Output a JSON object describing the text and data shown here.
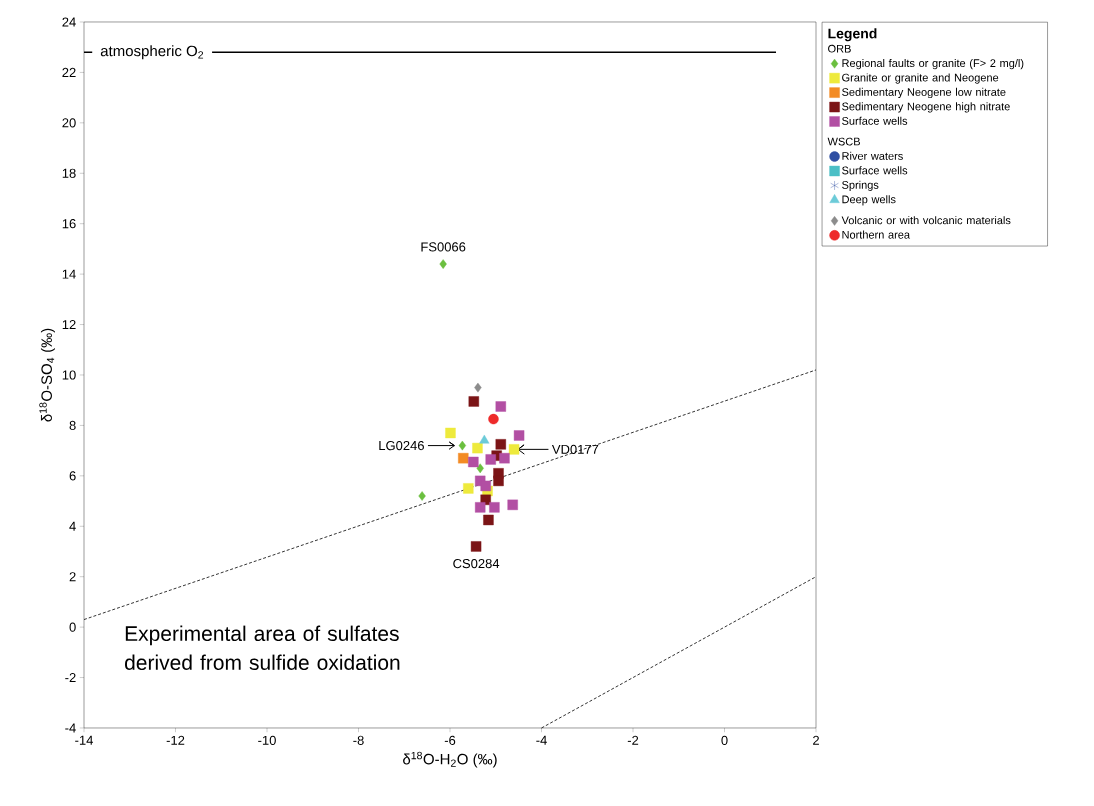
{
  "chart_data": {
    "type": "scatter",
    "xlabel": "δ$^{18}$O-H$_{2}$O (‰)",
    "ylabel": "δ$^{18}$O-SO$_{4}$ (‰)",
    "legend_title": "Legend",
    "xlim": [
      -14,
      2
    ],
    "ylim": [
      -4,
      24
    ],
    "xticks": [
      -14,
      -12,
      -10,
      -8,
      -6,
      -4,
      -2,
      0,
      2
    ],
    "yticks": [
      -4,
      -2,
      0,
      2,
      4,
      6,
      8,
      10,
      12,
      14,
      16,
      18,
      20,
      22,
      24
    ],
    "grid": false,
    "legend": "right",
    "ref_lines": [
      {
        "axis": "y",
        "value": 22.8,
        "label": "atmospheric O$_{2}$",
        "color": "#000000"
      }
    ],
    "annotations": [
      "ORB",
      "WSCB",
      {
        "text": "FS0066",
        "x": -6.15,
        "y": 14.4
      },
      {
        "text": "LG0246",
        "x": -5.73,
        "y": 7.2
      },
      {
        "text": "VD0177",
        "x": -4.6,
        "y": 7.05
      },
      {
        "text": "CS0284",
        "x": -5.43,
        "y": 3.2
      },
      "Experimental area of sulfates derived from sulfide oxidation"
    ],
    "series": [
      {
        "name": "Regional faults or granite (F> 2 mg/l)",
        "color": "#6bbf3f",
        "marker": "diamond",
        "x": [
          -6.15,
          -6.61,
          -5.73,
          -5.34
        ],
        "values": [
          14.4,
          5.2,
          7.2,
          6.3
        ]
      },
      {
        "name": "Granite or granite and Neogene",
        "color": "#eeea3c",
        "marker": "square",
        "x": [
          -5.99,
          -5.4,
          -4.6,
          -5.6,
          -5.18
        ],
        "values": [
          7.7,
          7.1,
          7.05,
          5.5,
          5.4
        ]
      },
      {
        "name": "Sedimentary Neogene low nitrate",
        "color": "#f38b24",
        "marker": "square",
        "x": [
          -5.71
        ],
        "values": [
          6.7
        ]
      },
      {
        "name": "Sedimentary Neogene high nitrate",
        "color": "#7b1416",
        "marker": "square",
        "x": [
          -5.48,
          -4.89,
          -4.98,
          -4.94,
          -4.94,
          -5.22,
          -5.16,
          -5.43
        ],
        "values": [
          8.95,
          7.25,
          6.8,
          6.1,
          5.8,
          5.05,
          4.25,
          3.2
        ]
      },
      {
        "name": "Surface wells",
        "color": "#b24fa3",
        "marker": "square",
        "x": [
          -4.89,
          -4.49,
          -5.49,
          -5.11,
          -4.81,
          -5.34,
          -5.22,
          -5.34,
          -5.03,
          -4.63
        ],
        "values": [
          8.75,
          7.6,
          6.55,
          6.65,
          6.7,
          5.8,
          5.6,
          4.75,
          4.75,
          4.85
        ]
      },
      {
        "name": "River waters",
        "color": "#2f4fa2",
        "marker": "circle"
      },
      {
        "name": "Surface wells",
        "color": "#4bbfc6",
        "marker": "square"
      },
      {
        "name": "Springs",
        "color": "#2f4fa2",
        "marker": "star"
      },
      {
        "name": "Deep wells",
        "color": "#6ccbd8",
        "marker": "triangle",
        "x": [
          -5.25
        ],
        "values": [
          7.4
        ]
      },
      {
        "name": "Volcanic or with volcanic materials",
        "color": "#8c8c8c",
        "marker": "diamond",
        "x": [
          -5.39
        ],
        "values": [
          9.5
        ]
      },
      {
        "name": "Northern area",
        "color": "#ee2a2a",
        "marker": "circle",
        "x": [
          -5.05
        ],
        "values": [
          8.25
        ]
      },
      {
        "type": "line",
        "color": "#000000",
        "line_style": "dotted",
        "x": [
          -14,
          2
        ],
        "values": [
          0.3,
          10.2
        ]
      },
      {
        "type": "line",
        "color": "#000000",
        "line_style": "dotted",
        "x": [
          -4,
          2
        ],
        "values": [
          -4,
          2
        ]
      }
    ]
  }
}
